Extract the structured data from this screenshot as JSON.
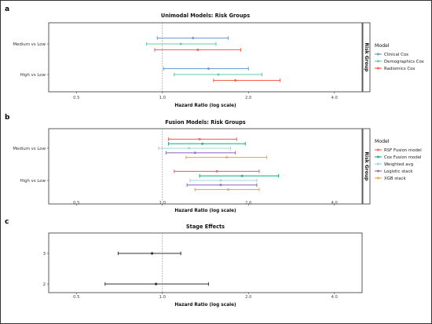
{
  "chart_data": [
    {
      "panel": "a",
      "type": "forest",
      "title": "Unimodal Models: Risk Groups",
      "xlabel": "Hazard Ratio (log scale)",
      "ylabel": "",
      "x_scale": "log",
      "xlim": [
        0.4,
        5.0
      ],
      "x_ticks": [
        0.5,
        1.0,
        2.0,
        4.0
      ],
      "x_tick_labels": [
        "0.5",
        "1.0",
        "2.0",
        "4.0"
      ],
      "reference_line": 1.0,
      "facet_strip": "Risk Group",
      "categories": [
        "Medium vs Low",
        "High vs Low"
      ],
      "legend": {
        "title": "Model",
        "placement": "right"
      },
      "series": [
        {
          "name": "Clinical Cox",
          "color": "#6A9ECF",
          "points": [
            {
              "category": "Medium vs Low",
              "estimate": 1.28,
              "low": 0.96,
              "high": 1.7
            },
            {
              "category": "High vs Low",
              "estimate": 1.45,
              "low": 1.01,
              "high": 2.0
            }
          ]
        },
        {
          "name": "Demographics Cox",
          "color": "#66CDAA",
          "points": [
            {
              "category": "Medium vs Low",
              "estimate": 1.16,
              "low": 0.88,
              "high": 1.54
            },
            {
              "category": "High vs Low",
              "estimate": 1.57,
              "low": 1.1,
              "high": 2.23
            }
          ]
        },
        {
          "name": "Radiomics Cox",
          "color": "#F0664E",
          "points": [
            {
              "category": "Medium vs Low",
              "estimate": 1.33,
              "low": 0.94,
              "high": 1.88
            },
            {
              "category": "High vs Low",
              "estimate": 1.8,
              "low": 1.51,
              "high": 2.58
            }
          ]
        }
      ]
    },
    {
      "panel": "b",
      "type": "forest",
      "title": "Fusion Models: Risk Groups",
      "xlabel": "Hazard Ratio (log scale)",
      "ylabel": "",
      "x_scale": "log",
      "xlim": [
        0.4,
        5.0
      ],
      "x_ticks": [
        0.5,
        1.0,
        2.0,
        4.0
      ],
      "x_tick_labels": [
        "0.5",
        "1.0",
        "2.0",
        "4.0"
      ],
      "reference_line": 1.0,
      "facet_strip": "Risk Group",
      "categories": [
        "Medium vs Low",
        "High vs Low"
      ],
      "legend": {
        "title": "Model",
        "placement": "right"
      },
      "series": [
        {
          "name": "RSF Fusion model",
          "color": "#F26B5B",
          "points": [
            {
              "category": "Medium vs Low",
              "estimate": 1.35,
              "low": 1.05,
              "high": 1.82
            },
            {
              "category": "High vs Low",
              "estimate": 1.55,
              "low": 1.1,
              "high": 2.18
            }
          ]
        },
        {
          "name": "Cox Fusion model",
          "color": "#1FB58E",
          "points": [
            {
              "category": "Medium vs Low",
              "estimate": 1.38,
              "low": 1.05,
              "high": 1.95
            },
            {
              "category": "High vs Low",
              "estimate": 1.9,
              "low": 1.35,
              "high": 2.55
            }
          ]
        },
        {
          "name": "Weighted avg",
          "color": "#9FD8D2",
          "points": [
            {
              "category": "Medium vs Low",
              "estimate": 1.24,
              "low": 0.97,
              "high": 1.73
            },
            {
              "category": "High vs Low",
              "estimate": 1.6,
              "low": 1.25,
              "high": 2.14
            }
          ]
        },
        {
          "name": "Logistic stack",
          "color": "#9B6FC8",
          "points": [
            {
              "category": "Medium vs Low",
              "estimate": 1.3,
              "low": 1.03,
              "high": 1.8
            },
            {
              "category": "High vs Low",
              "estimate": 1.6,
              "low": 1.22,
              "high": 2.14
            }
          ]
        },
        {
          "name": "XGB stack",
          "color": "#F2A65A",
          "points": [
            {
              "category": "Medium vs Low",
              "estimate": 1.68,
              "low": 1.21,
              "high": 2.32
            },
            {
              "category": "High vs Low",
              "estimate": 1.7,
              "low": 1.3,
              "high": 2.18
            }
          ]
        }
      ]
    },
    {
      "panel": "c",
      "type": "forest",
      "title": "Stage Effects",
      "xlabel": "Hazard Ratio (log scale)",
      "ylabel": "",
      "x_scale": "log",
      "xlim": [
        0.4,
        5.0
      ],
      "x_ticks": [
        0.5,
        1.0,
        2.0,
        4.0
      ],
      "x_tick_labels": [
        "0.5",
        "1.0",
        "2.0",
        "4.0"
      ],
      "reference_line": 1.0,
      "categories": [
        "3",
        "2"
      ],
      "series": [
        {
          "name": "",
          "color": "#333333",
          "points": [
            {
              "category": "3",
              "estimate": 0.92,
              "low": 0.7,
              "high": 1.16
            },
            {
              "category": "2",
              "estimate": 0.95,
              "low": 0.63,
              "high": 1.45
            }
          ]
        }
      ]
    }
  ]
}
